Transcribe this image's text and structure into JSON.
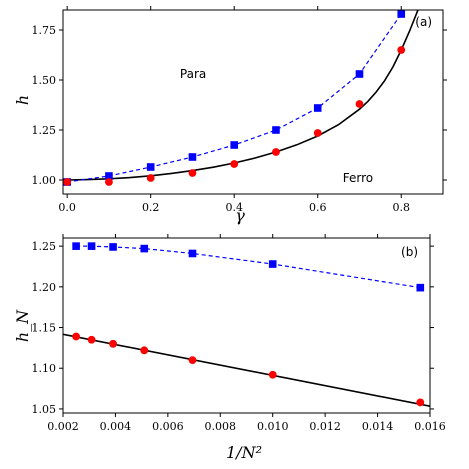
{
  "chart_data": [
    {
      "type": "line",
      "panel_label": "(a)",
      "xlabel": "γ",
      "ylabel": "h",
      "xlim": [
        -0.01,
        0.9
      ],
      "ylim": [
        0.93,
        1.85
      ],
      "xticks": [
        0.0,
        0.2,
        0.4,
        0.6,
        0.8
      ],
      "xtick_labels": [
        "0.0",
        "0.2",
        "0.4",
        "0.6",
        "0.8"
      ],
      "yticks": [
        1.0,
        1.25,
        1.5,
        1.75
      ],
      "ytick_labels": [
        "1.00",
        "1.25",
        "1.50",
        "1.75"
      ],
      "annotations": [
        {
          "text": "Para",
          "x": 0.27,
          "y": 1.51
        },
        {
          "text": "Ferro",
          "x": 0.66,
          "y": 0.99
        }
      ],
      "curve": {
        "x": [
          0.0,
          0.05,
          0.1,
          0.15,
          0.2,
          0.25,
          0.3,
          0.35,
          0.4,
          0.45,
          0.5,
          0.55,
          0.6,
          0.65,
          0.7,
          0.72,
          0.74,
          0.76,
          0.78,
          0.8,
          0.82,
          0.84,
          0.86
        ],
        "y": [
          1.0,
          1.002,
          1.006,
          1.012,
          1.021,
          1.033,
          1.047,
          1.064,
          1.085,
          1.11,
          1.14,
          1.176,
          1.22,
          1.277,
          1.354,
          1.393,
          1.44,
          1.496,
          1.565,
          1.65,
          1.745,
          1.85,
          1.98
        ],
        "color": "#000000"
      },
      "series": [
        {
          "marker": "square",
          "color": "#0000ff",
          "dashed": true,
          "x": [
            0.0,
            0.1,
            0.2,
            0.3,
            0.4,
            0.5,
            0.6,
            0.7,
            0.8
          ],
          "y": [
            0.99,
            1.02,
            1.065,
            1.115,
            1.175,
            1.25,
            1.36,
            1.53,
            1.83
          ]
        },
        {
          "marker": "circle",
          "color": "#ff0000",
          "dashed": false,
          "x": [
            0.0,
            0.1,
            0.2,
            0.3,
            0.4,
            0.5,
            0.6,
            0.7,
            0.8
          ],
          "y": [
            0.99,
            0.99,
            1.01,
            1.035,
            1.08,
            1.14,
            1.235,
            1.38,
            1.65
          ]
        }
      ]
    },
    {
      "type": "line",
      "panel_label": "(b)",
      "xlabel": "1/N²",
      "ylabel": "h_N",
      "xlim": [
        0.002,
        0.016
      ],
      "ylim": [
        1.045,
        1.26
      ],
      "xticks": [
        0.002,
        0.004,
        0.006,
        0.008,
        0.01,
        0.012,
        0.014,
        0.016
      ],
      "xtick_labels": [
        "0.002",
        "0.004",
        "0.006",
        "0.008",
        "0.010",
        "0.012",
        "0.014",
        "0.016"
      ],
      "yticks": [
        1.05,
        1.1,
        1.15,
        1.2,
        1.25
      ],
      "ytick_labels": [
        "1.05",
        "1.10",
        "1.15",
        "1.20",
        "1.25"
      ],
      "series": [
        {
          "marker": "square",
          "color": "#0000ff",
          "dashed": true,
          "x": [
            0.0025,
            0.00309,
            0.00391,
            0.0051,
            0.00694,
            0.01,
            0.01563
          ],
          "y": [
            1.25,
            1.25,
            1.249,
            1.247,
            1.241,
            1.228,
            1.199
          ]
        },
        {
          "marker": "circle",
          "color": "#ff0000",
          "dashed": false,
          "x": [
            0.0025,
            0.00309,
            0.00391,
            0.0051,
            0.00694,
            0.01,
            0.01563
          ],
          "y": [
            1.139,
            1.135,
            1.13,
            1.122,
            1.11,
            1.092,
            1.058
          ]
        }
      ],
      "fit_line": {
        "x": [
          0.002,
          0.016
        ],
        "y": [
          1.1417,
          1.0534
        ],
        "color": "#000000"
      }
    }
  ]
}
